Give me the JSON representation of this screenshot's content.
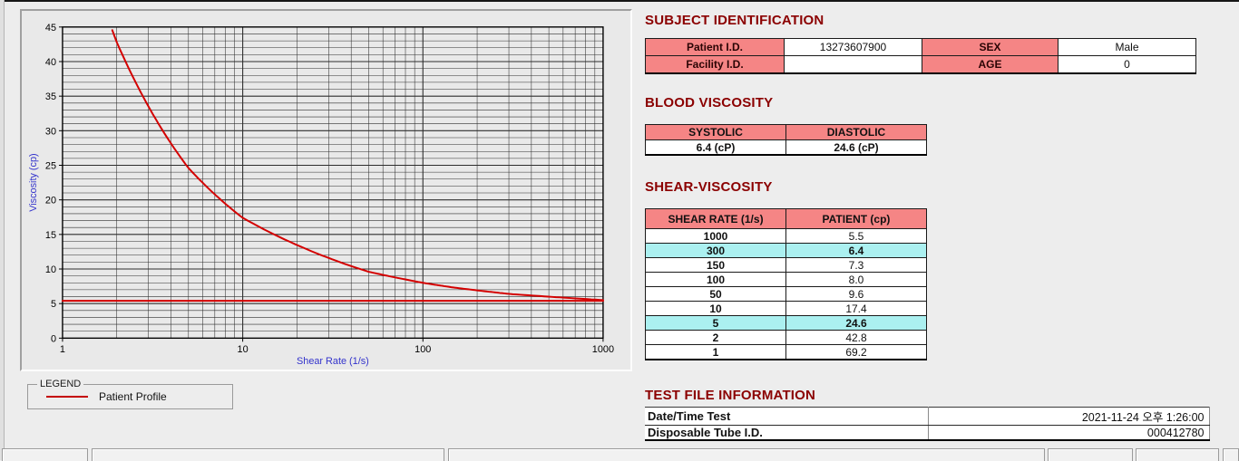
{
  "subject_identification": {
    "heading": "SUBJECT IDENTIFICATION",
    "rows": [
      {
        "label1": "Patient I.D.",
        "value1": "13273607900",
        "label2": "SEX",
        "value2": "Male"
      },
      {
        "label1": "Facility I.D.",
        "value1": "",
        "label2": "AGE",
        "value2": "0"
      }
    ]
  },
  "blood_viscosity": {
    "heading": "BLOOD VISCOSITY",
    "columns": [
      "SYSTOLIC",
      "DIASTOLIC"
    ],
    "values": [
      "6.4 (cP)",
      "24.6 (cP)"
    ]
  },
  "shear_viscosity": {
    "heading": "SHEAR-VISCOSITY",
    "columns": [
      "SHEAR RATE (1/s)",
      "PATIENT (cp)"
    ],
    "rows": [
      {
        "shear_rate": "1000",
        "patient": "5.5",
        "highlight": false
      },
      {
        "shear_rate": "300",
        "patient": "6.4",
        "highlight": true
      },
      {
        "shear_rate": "150",
        "patient": "7.3",
        "highlight": false
      },
      {
        "shear_rate": "100",
        "patient": "8.0",
        "highlight": false
      },
      {
        "shear_rate": "50",
        "patient": "9.6",
        "highlight": false
      },
      {
        "shear_rate": "10",
        "patient": "17.4",
        "highlight": false
      },
      {
        "shear_rate": "5",
        "patient": "24.6",
        "highlight": true
      },
      {
        "shear_rate": "2",
        "patient": "42.8",
        "highlight": false
      },
      {
        "shear_rate": "1",
        "patient": "69.2",
        "highlight": false
      }
    ],
    "highlight_color": "#abf0f0"
  },
  "test_file_information": {
    "heading": "TEST FILE INFORMATION",
    "rows": [
      {
        "label": "Date/Time Test",
        "value": "2021-11-24  오후 1:26:00"
      },
      {
        "label": "Disposable Tube I.D.",
        "value": "000412780"
      }
    ]
  },
  "legend": {
    "caption": "LEGEND",
    "items": [
      {
        "label": "Patient Profile",
        "color": "#c40000"
      }
    ]
  },
  "chart_data": {
    "type": "line",
    "title": "",
    "xlabel": "Shear Rate (1/s)",
    "ylabel": "Viscosity (cp)",
    "x_scale": "log",
    "xlim": [
      1,
      1000
    ],
    "ylim": [
      0,
      45
    ],
    "x_ticks": [
      "1",
      "10",
      "100",
      "1000"
    ],
    "y_ticks": [
      0,
      5,
      10,
      15,
      20,
      25,
      30,
      35,
      40,
      45
    ],
    "y_minor_step": 1,
    "grid": true,
    "legend_position": "separate box below-left",
    "series": [
      {
        "name": "Patient Profile",
        "color": "#d40000",
        "x": [
          1,
          2,
          5,
          10,
          50,
          100,
          150,
          300,
          1000
        ],
        "y": [
          69.2,
          42.8,
          24.6,
          17.4,
          9.6,
          8.0,
          7.3,
          6.4,
          5.5
        ]
      },
      {
        "name": "high-shear flat line",
        "color": "#d40000",
        "x": [
          1,
          1000
        ],
        "y": [
          5.4,
          5.4
        ]
      }
    ],
    "axis_title_color": "#3333cc",
    "tick_label_color": "#000000",
    "grid_color": "#2e2e2e",
    "plot_bg": "#e9e9e9"
  },
  "colors": {
    "heading": "#8b0000",
    "table_header_bg": "#f58585",
    "highlight_row_bg": "#abf0f0",
    "window_bg": "#ededed",
    "curve": "#d40000"
  }
}
